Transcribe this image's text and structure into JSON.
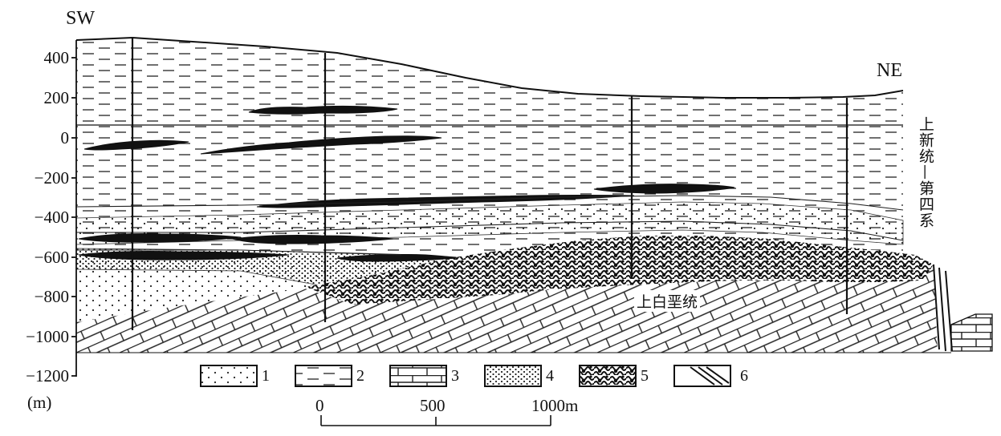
{
  "header": {
    "direction_left": "SW",
    "direction_right": "NE"
  },
  "axis": {
    "unit": "(m)",
    "ticks": [
      "400",
      "200",
      "0",
      "−200",
      "−400",
      "−600",
      "−800",
      "−1000",
      "−1200"
    ]
  },
  "stratigraphy": {
    "upper_label": "上新统—第四系",
    "lower_label": "上白垩统"
  },
  "legend": {
    "items": [
      {
        "num": "1",
        "pattern": "sparse-dots"
      },
      {
        "num": "2",
        "pattern": "dashes"
      },
      {
        "num": "3",
        "pattern": "bricks"
      },
      {
        "num": "4",
        "pattern": "dense-dots"
      },
      {
        "num": "5",
        "pattern": "conglomerate"
      },
      {
        "num": "6",
        "pattern": "fault"
      }
    ]
  },
  "scale_bar": {
    "labels": [
      "0",
      "500",
      "1000m"
    ]
  }
}
